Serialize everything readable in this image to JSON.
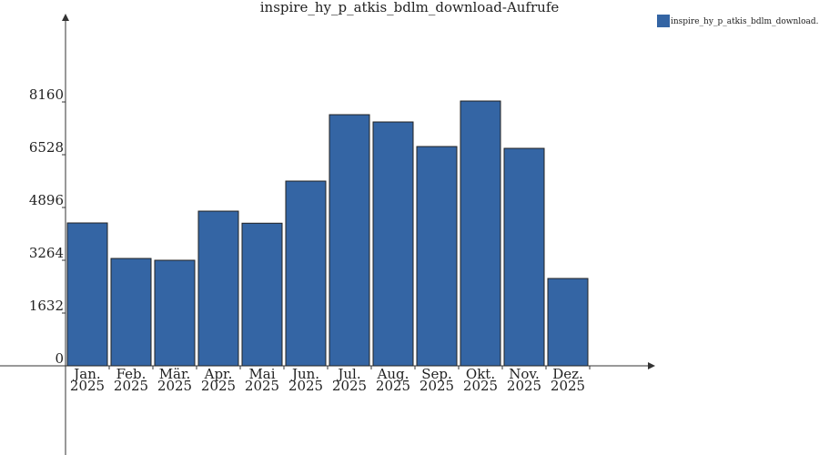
{
  "chart_data": {
    "type": "bar",
    "title": "inspire_hy_p_atkis_bdlm_download-Aufrufe",
    "categories": [
      [
        "Jan.",
        "2025"
      ],
      [
        "Feb.",
        "2025"
      ],
      [
        "Mär.",
        "2025"
      ],
      [
        "Apr.",
        "2025"
      ],
      [
        "Mai",
        "2025"
      ],
      [
        "Jun.",
        "2025"
      ],
      [
        "Jul.",
        "2025"
      ],
      [
        "Aug.",
        "2025"
      ],
      [
        "Sep.",
        "2025"
      ],
      [
        "Okt.",
        "2025"
      ],
      [
        "Nov.",
        "2025"
      ],
      [
        "Dez.",
        "2025"
      ]
    ],
    "series": [
      {
        "name": "inspire_hy_p_atkis_bdlm_download...",
        "color": "#3465a4",
        "values": [
          4418,
          3320,
          3264,
          4783,
          4410,
          5712,
          7766,
          7541,
          6781,
          8188,
          6725,
          2701
        ]
      }
    ],
    "ylim": [
      0,
      10890
    ],
    "yticks": [
      0,
      1632,
      3264,
      4896,
      6528,
      8160
    ],
    "legend": "top-right"
  }
}
